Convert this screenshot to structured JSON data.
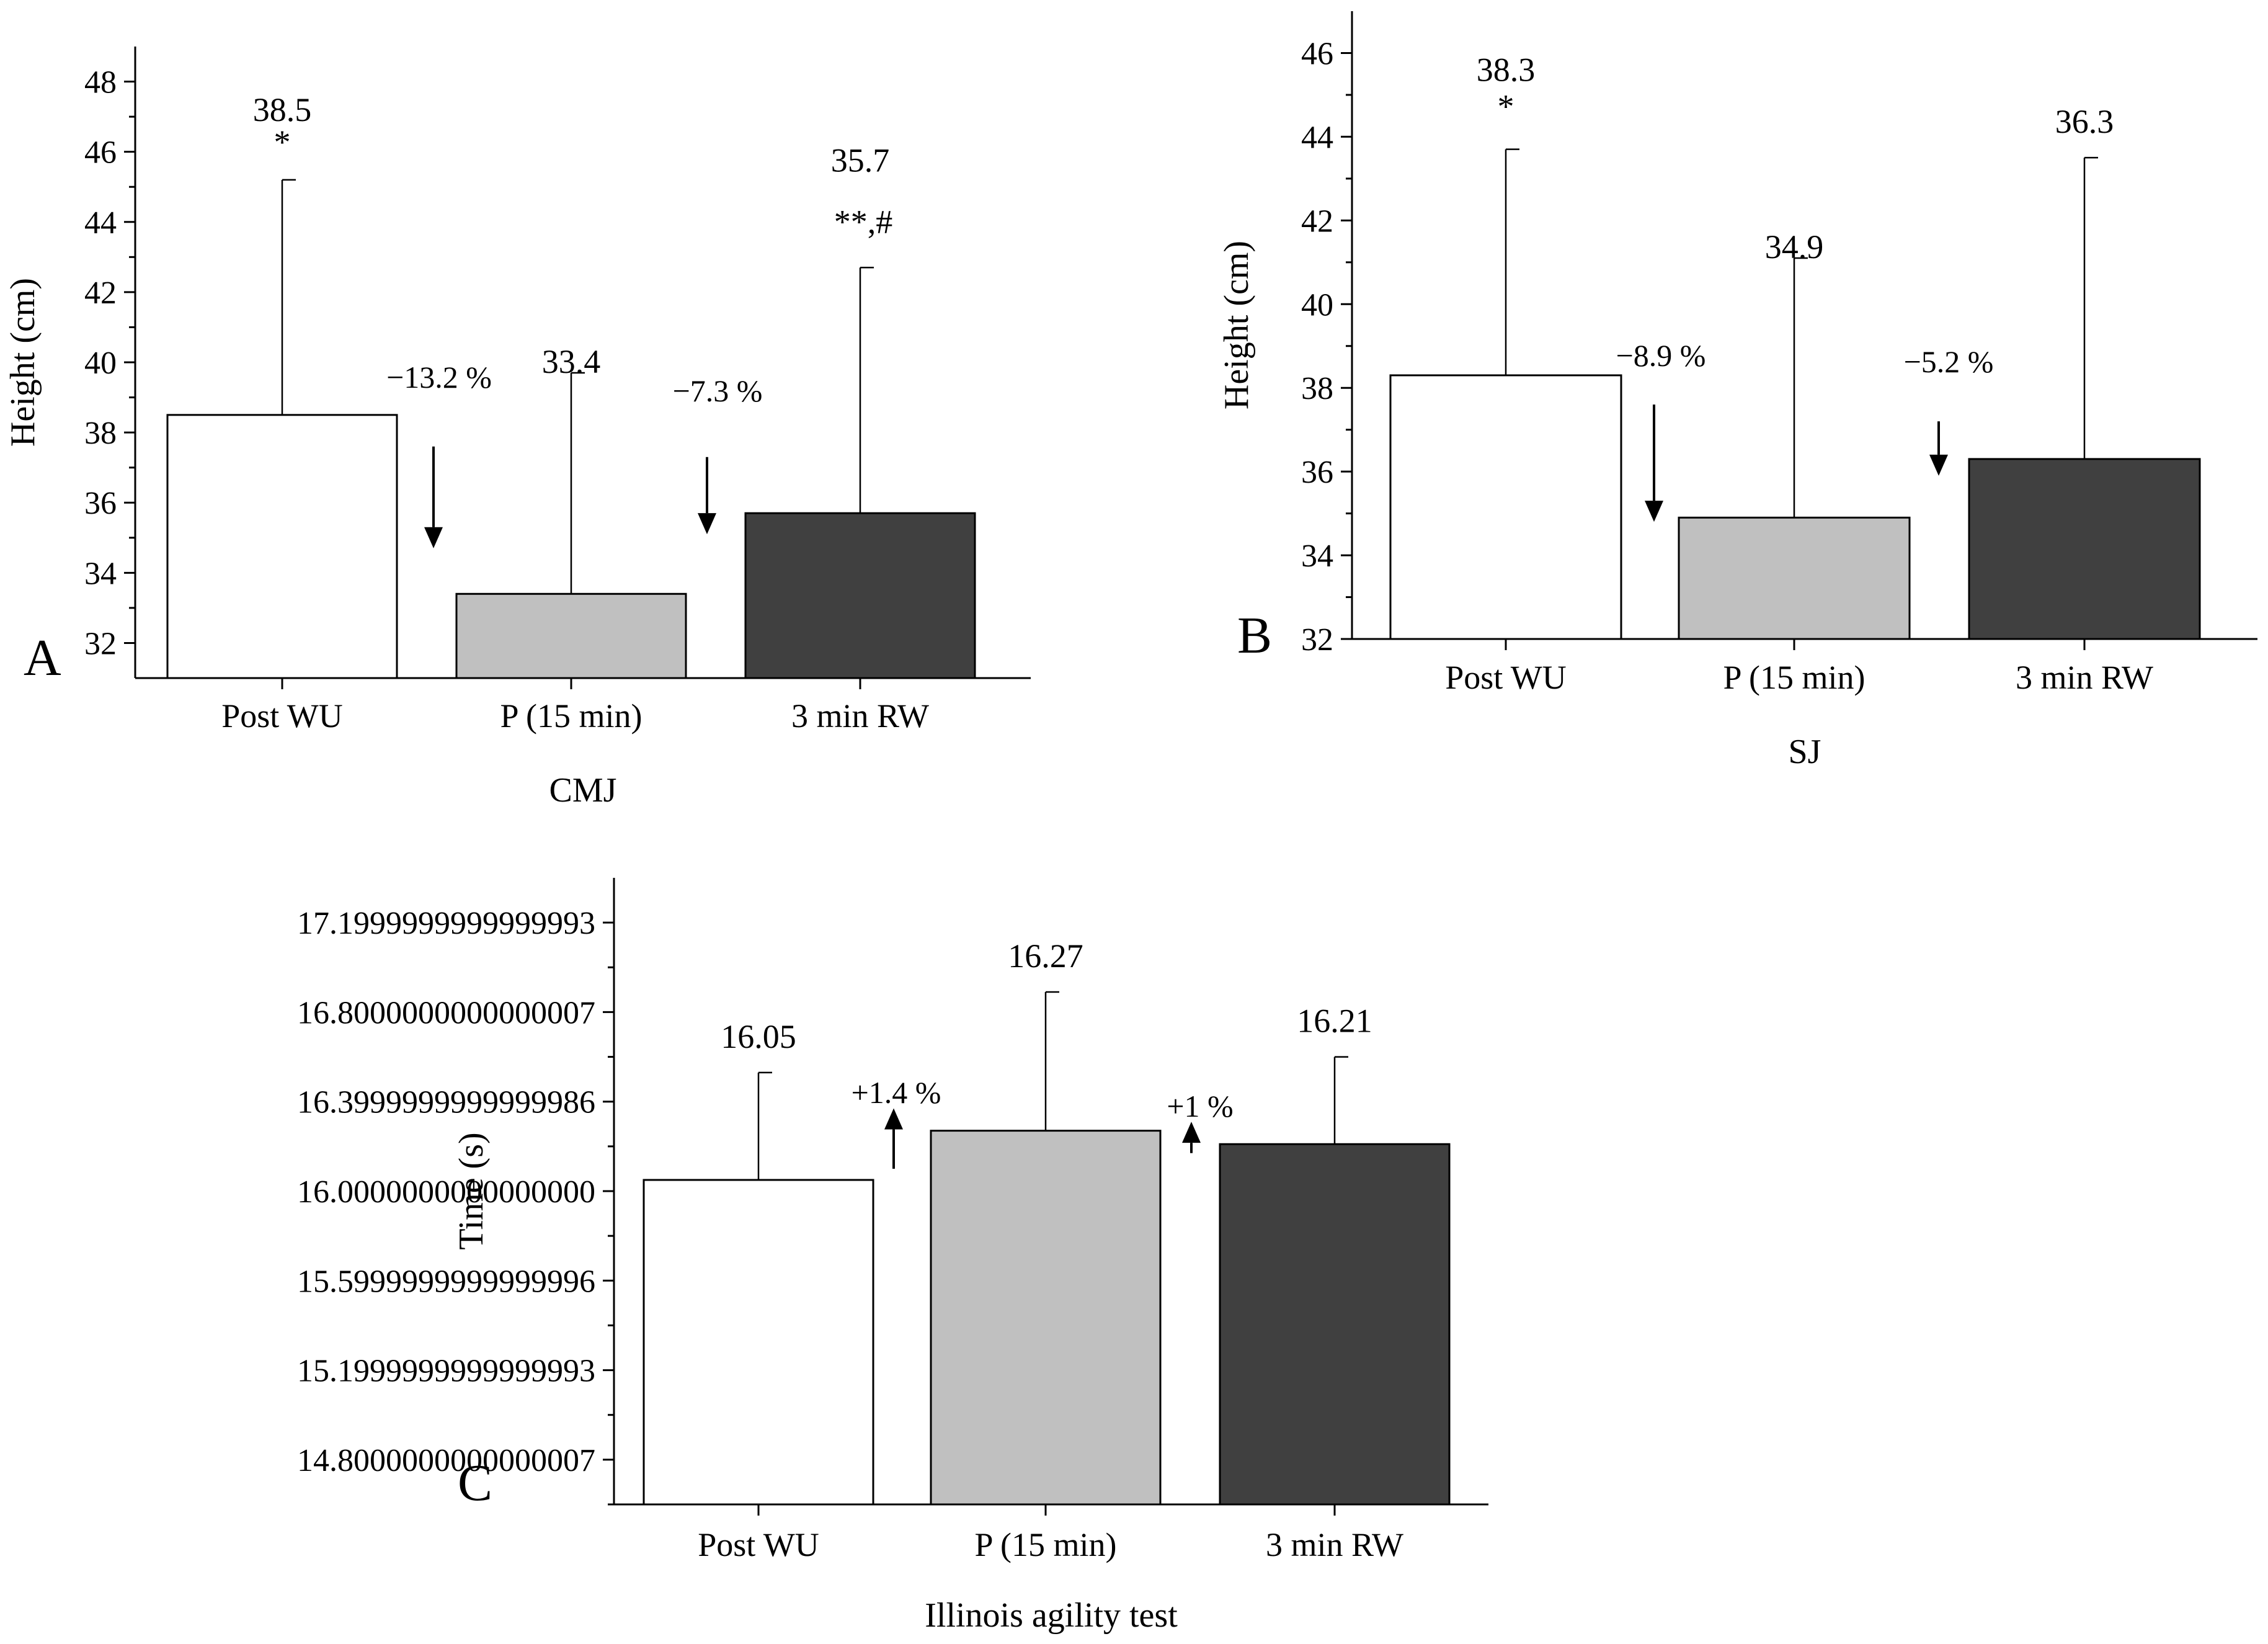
{
  "chart_data": [
    {
      "panel": "A",
      "type": "bar",
      "title": "",
      "xlabel": "CMJ",
      "ylabel": "Height (cm)",
      "ylim": [
        31,
        49
      ],
      "major_ticks": [
        32,
        34,
        36,
        38,
        40,
        42,
        44,
        46,
        48
      ],
      "categories": [
        "Post WU",
        "P (15 min)",
        "3 min RW"
      ],
      "values": [
        38.5,
        33.4,
        35.7
      ],
      "error_upper": [
        45.2,
        39.7,
        42.7
      ],
      "value_labels": [
        "38.5",
        "33.4",
        "35.7"
      ],
      "significance": [
        "*",
        "",
        "**,#"
      ],
      "bar_colors": [
        "#ffffff",
        "#c0c0c0",
        "#404040"
      ],
      "annotations": [
        {
          "text": "−13.2 %",
          "direction": "down",
          "arrow_from": 37.6,
          "arrow_to": 34.7
        },
        {
          "text": "−7.3 %",
          "direction": "down",
          "arrow_from": 37.3,
          "arrow_to": 35.1
        }
      ]
    },
    {
      "panel": "B",
      "type": "bar",
      "title": "",
      "xlabel": "SJ",
      "ylabel": "Height (cm)",
      "ylim": [
        32,
        47
      ],
      "major_ticks": [
        32,
        34,
        36,
        38,
        40,
        42,
        44,
        46
      ],
      "categories": [
        "Post WU",
        "P (15 min)",
        "3 min RW"
      ],
      "values": [
        38.3,
        34.9,
        36.3
      ],
      "error_upper": [
        43.7,
        41.1,
        43.5
      ],
      "value_labels": [
        "38.3",
        "34.9",
        "36.3"
      ],
      "significance": [
        "*",
        "",
        ""
      ],
      "bar_colors": [
        "#ffffff",
        "#c0c0c0",
        "#404040"
      ],
      "annotations": [
        {
          "text": "−8.9 %",
          "direction": "down",
          "arrow_from": 37.6,
          "arrow_to": 34.8
        },
        {
          "text": "−5.2 %",
          "direction": "down",
          "arrow_from": 37.2,
          "arrow_to": 35.9
        }
      ]
    },
    {
      "panel": "C",
      "type": "bar",
      "title": "",
      "xlabel": "Illinois agility test",
      "ylabel": "Time (s)",
      "ylim": [
        14.6,
        17.4
      ],
      "major_ticks": [
        14.8,
        15.2,
        15.6,
        16.0,
        16.4,
        16.8,
        17.2
      ],
      "categories": [
        "Post WU",
        "P (15 min)",
        "3 min RW"
      ],
      "values": [
        16.05,
        16.27,
        16.21
      ],
      "error_upper": [
        16.53,
        16.89,
        16.6
      ],
      "value_labels": [
        "16.05",
        "16.27",
        "16.21"
      ],
      "significance": [
        "",
        "",
        ""
      ],
      "bar_colors": [
        "#ffffff",
        "#c0c0c0",
        "#404040"
      ],
      "annotations": [
        {
          "text": "+1.4 %",
          "direction": "up",
          "arrow_from": 16.1,
          "arrow_to": 16.37
        },
        {
          "text": "+1 %",
          "direction": "up",
          "arrow_from": 16.17,
          "arrow_to": 16.31
        }
      ]
    }
  ]
}
